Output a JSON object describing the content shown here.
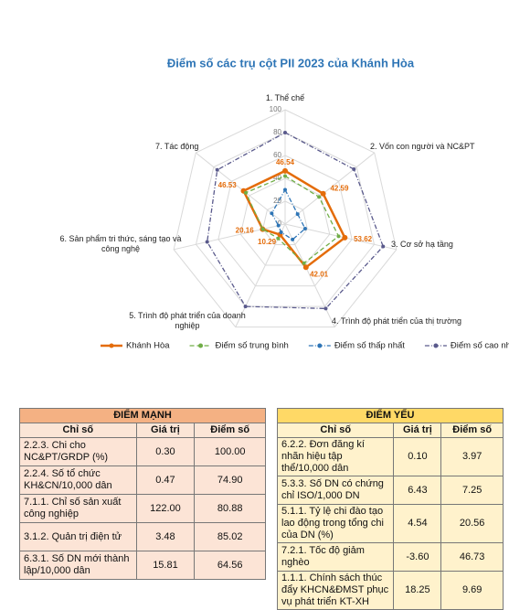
{
  "chart_data": {
    "type": "radar",
    "title": "Điểm số các trụ cột PII 2023 của Khánh Hòa",
    "categories": [
      "1. Thể chế",
      "2. Vốn con người và NC&PT",
      "3. Cơ sở hạ tầng",
      "4. Trình độ phát triển của thị trường",
      "5. Trình độ phát triển của doanh nghiệp",
      "6. Sản phẩm tri thức, sáng tạo và công nghệ",
      "7. Tác động"
    ],
    "ylim": [
      0,
      100
    ],
    "yticks": [
      0,
      20,
      40,
      60,
      80,
      100
    ],
    "grid": true,
    "legend": "bottom",
    "series": [
      {
        "name": "Khánh Hòa",
        "color": "#e46c0a",
        "line_style": "solid",
        "values": [
          46.54,
          42.59,
          53.62,
          42.01,
          10.29,
          20.16,
          46.53
        ]
      },
      {
        "name": "Điểm số trung bình",
        "color": "#70ad47",
        "line_style": "dash",
        "values": [
          42,
          38,
          48,
          38,
          14,
          20,
          44
        ]
      },
      {
        "name": "Điểm số thấp nhất",
        "color": "#2e75b6",
        "line_style": "dashdot",
        "values": [
          30,
          14,
          18,
          15,
          8,
          6,
          15
        ]
      },
      {
        "name": "Điểm số cao nhất",
        "color": "#5a5a8c",
        "line_style": "dashdot",
        "values": [
          80,
          77,
          88,
          82,
          80,
          70,
          76
        ]
      }
    ]
  },
  "strengths": {
    "title": "ĐIỂM MẠNH",
    "header": [
      "Chỉ số",
      "Giá trị",
      "Điểm số"
    ],
    "rows": [
      [
        "2.2.3. Chi cho NC&PT/GRDP (%)",
        "0.30",
        "100.00"
      ],
      [
        "2.2.4. Số tổ chức KH&CN/10,000 dân",
        "0.47",
        "74.90"
      ],
      [
        "7.1.1. Chỉ số sản xuất công nghiệp",
        "122.00",
        "80.88"
      ],
      [
        "3.1.2. Quản trị điện tử",
        "3.48",
        "85.02"
      ],
      [
        "6.3.1. Số DN mới thành lập/10,000 dân",
        "15.81",
        "64.56"
      ]
    ]
  },
  "weaknesses": {
    "title": "ĐIỂM YẾU",
    "header": [
      "Chỉ số",
      "Giá trị",
      "Điểm số"
    ],
    "rows": [
      [
        "6.2.2. Đơn đăng kí nhãn hiệu tập thể/10,000 dân",
        "0.10",
        "3.97"
      ],
      [
        "5.3.3. Số DN có chứng chỉ ISO/1,000 DN",
        "6.43",
        "7.25"
      ],
      [
        "5.1.1. Tỷ lệ chi đào tạo lao động trong tổng chi của DN (%)",
        "4.54",
        "20.56"
      ],
      [
        "7.2.1. Tốc độ giảm nghèo",
        "-3.60",
        "46.73"
      ],
      [
        "1.1.1. Chính sách thúc đẩy KHCN&ĐMST phục vụ phát triển KT-XH",
        "18.25",
        "9.69"
      ]
    ]
  }
}
